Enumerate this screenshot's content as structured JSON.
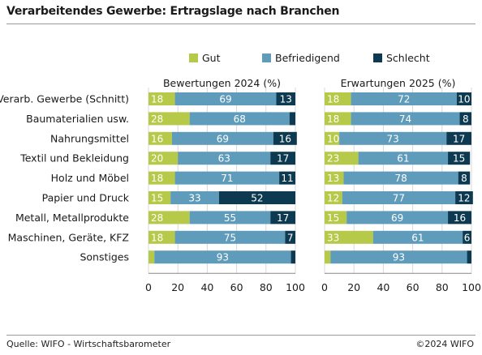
{
  "title": "Verarbeitendes Gewerbe: Ertragslage nach Branchen",
  "footer": {
    "source": "Quelle: WIFO - Wirtschaftsbarometer",
    "copyright": "©2024 WIFO"
  },
  "chart_data": {
    "type": "bar",
    "stacked": true,
    "orientation": "horizontal",
    "legend": {
      "placement": "top",
      "entries": [
        {
          "name": "Gut",
          "color": "#b6c948"
        },
        {
          "name": "Befriedigend",
          "color": "#5f9bba"
        },
        {
          "name": "Schlecht",
          "color": "#0d3a50"
        }
      ]
    },
    "categories": [
      "Verarb. Gewerbe (Schnitt)",
      "Baumaterialien usw.",
      "Nahrungsmittel",
      "Textil und Bekleidung",
      "Holz und Möbel",
      "Papier und Druck",
      "Metall, Metallprodukte",
      "Maschinen, Geräte, KFZ",
      "Sonstiges"
    ],
    "xlim": [
      0,
      100
    ],
    "xticks": [
      "0",
      "20",
      "40",
      "60",
      "80",
      "100"
    ],
    "panels": [
      {
        "title": "Bewertungen 2024 (%)",
        "series": [
          {
            "name": "Gut",
            "values": [
              18,
              28,
              16,
              20,
              18,
              15,
              28,
              18,
              4
            ],
            "labels": [
              "18",
              "28",
              "16",
              "20",
              "18",
              "15",
              "28",
              "18",
              ""
            ]
          },
          {
            "name": "Befriedigend",
            "values": [
              69,
              68,
              69,
              63,
              71,
              33,
              55,
              75,
              93
            ],
            "labels": [
              "69",
              "68",
              "69",
              "63",
              "71",
              "33",
              "55",
              "75",
              "93"
            ]
          },
          {
            "name": "Schlecht",
            "values": [
              13,
              4,
              16,
              17,
              11,
              52,
              17,
              7,
              3
            ],
            "labels": [
              "13",
              "",
              "16",
              "17",
              "11",
              "52",
              "17",
              "7",
              ""
            ]
          }
        ]
      },
      {
        "title": "Erwartungen 2025 (%)",
        "series": [
          {
            "name": "Gut",
            "values": [
              18,
              18,
              10,
              23,
              13,
              12,
              15,
              33,
              4
            ],
            "labels": [
              "18",
              "18",
              "10",
              "23",
              "13",
              "12",
              "15",
              "33",
              ""
            ]
          },
          {
            "name": "Befriedigend",
            "values": [
              72,
              74,
              73,
              61,
              78,
              77,
              69,
              61,
              93
            ],
            "labels": [
              "72",
              "74",
              "73",
              "61",
              "78",
              "77",
              "69",
              "61",
              "93"
            ]
          },
          {
            "name": "Schlecht",
            "values": [
              10,
              8,
              17,
              15,
              8,
              12,
              16,
              6,
              3
            ],
            "labels": [
              "10",
              "8",
              "17",
              "15",
              "8",
              "12",
              "16",
              "6",
              ""
            ]
          }
        ]
      }
    ]
  }
}
